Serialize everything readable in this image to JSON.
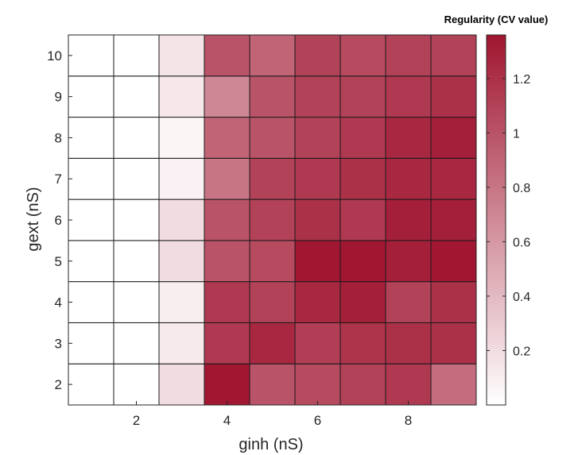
{
  "chart_data": {
    "type": "heatmap",
    "xlabel": "ginh (nS)",
    "ylabel": "gext (nS)",
    "x_values": [
      1,
      2,
      3,
      4,
      5,
      6,
      7,
      8,
      9
    ],
    "y_values": [
      2,
      3,
      4,
      5,
      6,
      7,
      8,
      9,
      10
    ],
    "x_ticks": [
      2,
      4,
      6,
      8
    ],
    "x_tick_labels": [
      "2",
      "4",
      "6",
      "8"
    ],
    "y_ticks": [
      2,
      3,
      4,
      5,
      6,
      7,
      8,
      9,
      10
    ],
    "y_tick_labels": [
      "2",
      "3",
      "4",
      "5",
      "6",
      "7",
      "8",
      "9",
      "10"
    ],
    "values": [
      [
        0,
        0,
        0.2,
        1.35,
        1.0,
        1.05,
        1.1,
        1.15,
        0.85
      ],
      [
        0,
        0,
        0.12,
        1.15,
        1.25,
        1.12,
        1.18,
        1.2,
        1.2
      ],
      [
        0,
        0,
        0.1,
        1.15,
        1.1,
        1.25,
        1.3,
        1.1,
        1.2
      ],
      [
        0,
        0,
        0.2,
        1.0,
        1.05,
        1.35,
        1.35,
        1.3,
        1.35
      ],
      [
        0,
        0,
        0.2,
        1.0,
        1.1,
        1.2,
        1.15,
        1.3,
        1.3
      ],
      [
        0,
        0,
        0.08,
        0.8,
        1.1,
        1.15,
        1.2,
        1.25,
        1.25
      ],
      [
        0,
        0,
        0.06,
        0.9,
        1.0,
        1.1,
        1.15,
        1.25,
        1.3
      ],
      [
        0,
        0,
        0.14,
        0.7,
        1.0,
        1.1,
        1.1,
        1.15,
        1.2
      ],
      [
        0,
        0,
        0.16,
        1.0,
        0.9,
        1.1,
        1.05,
        1.1,
        1.1
      ]
    ],
    "clim": [
      0,
      1.36
    ],
    "colormap": {
      "low": "#ffffff",
      "high": "#a01530"
    },
    "colorbar": {
      "title": "Regularity (CV value)",
      "ticks": [
        0.2,
        0.4,
        0.6,
        0.8,
        1,
        1.2
      ],
      "tick_labels": [
        "0.2",
        "0.4",
        "0.6",
        "0.8",
        "1",
        "1.2"
      ],
      "location": "right"
    },
    "grid": true
  }
}
